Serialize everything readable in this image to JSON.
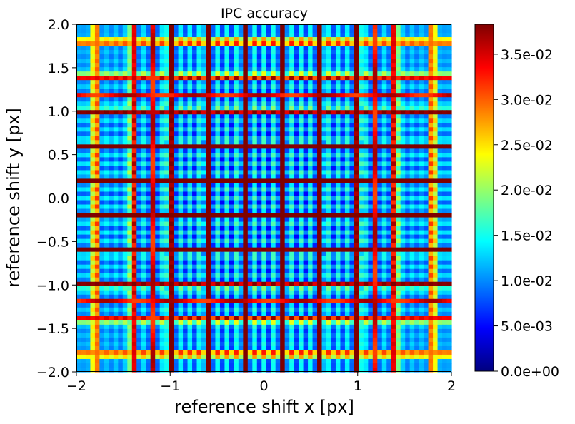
{
  "chart_data": {
    "type": "heatmap",
    "title": "IPC accuracy",
    "xlabel": "reference shift x [px]",
    "ylabel": "reference shift y [px]",
    "xlim": [
      -2,
      2
    ],
    "ylim": [
      -2,
      2
    ],
    "x_ticks": [
      -2,
      -1,
      0,
      1,
      2
    ],
    "x_tick_labels": [
      "−2",
      "−1",
      "0",
      "1",
      "2"
    ],
    "y_ticks": [
      -2.0,
      -1.5,
      -1.0,
      -0.5,
      0.0,
      0.5,
      1.0,
      1.5,
      2.0
    ],
    "y_tick_labels": [
      "−2.0",
      "−1.5",
      "−1.0",
      "−0.5",
      "0.0",
      "0.5",
      "1.0",
      "1.5",
      "2.0"
    ],
    "grid_resolution": [
      81,
      81
    ],
    "value_range": [
      0.0,
      0.0383
    ],
    "colormap": "jet",
    "colormap_stops": [
      "#00007f",
      "#0000ff",
      "#007fff",
      "#00ffff",
      "#7fff7f",
      "#ffff00",
      "#ff7f00",
      "#ff0000",
      "#7f0000"
    ],
    "colorbar": {
      "ticks": [
        0.0,
        0.005,
        0.01,
        0.015,
        0.02,
        0.025,
        0.03,
        0.035
      ],
      "tick_labels": [
        "0.0e+00",
        "5.0e-03",
        "1.0e-02",
        "1.5e-02",
        "2.0e-02",
        "2.5e-02",
        "3.0e-02",
        "3.5e-02"
      ]
    },
    "grid": false
  }
}
